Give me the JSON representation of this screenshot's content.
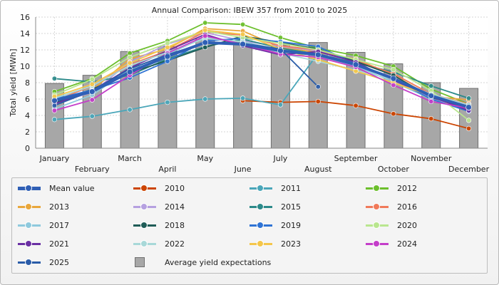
{
  "chart_data": {
    "type": "line",
    "title": "Annual Comparison: IBEW 357 from 2010 to 2025",
    "xlabel": "",
    "ylabel": "Total yield [MWh]",
    "ylim": [
      0,
      16
    ],
    "yticks": [
      0,
      2,
      4,
      6,
      8,
      10,
      12,
      14,
      16
    ],
    "grid": true,
    "legend_position": "bottom",
    "categories": [
      "January",
      "February",
      "March",
      "April",
      "May",
      "June",
      "July",
      "August",
      "September",
      "October",
      "November",
      "December"
    ],
    "bars": {
      "name": "Average yield expectations",
      "color": "#a7a7a7",
      "values": [
        7.9,
        8.9,
        11.8,
        12.4,
        13.3,
        13.1,
        12.6,
        12.9,
        11.7,
        10.3,
        8.0,
        7.3
      ]
    },
    "series": [
      {
        "name": "Mean value",
        "color": "#2f5fb5",
        "width": 4,
        "values": [
          5.8,
          6.9,
          9.3,
          11.2,
          12.9,
          12.7,
          11.9,
          11.4,
          10.2,
          8.5,
          6.4,
          5.0
        ]
      },
      {
        "name": "2010",
        "color": "#cc4400",
        "values": [
          null,
          null,
          null,
          null,
          null,
          5.8,
          5.6,
          5.7,
          5.2,
          4.2,
          3.6,
          2.4
        ]
      },
      {
        "name": "2011",
        "color": "#4aa6b9",
        "values": [
          3.5,
          3.9,
          4.7,
          5.6,
          6.0,
          6.1,
          5.3,
          11.6,
          null,
          null,
          null,
          null
        ]
      },
      {
        "name": "2012",
        "color": "#6cbf2c",
        "values": [
          6.9,
          8.5,
          11.6,
          13.1,
          15.3,
          15.1,
          13.5,
          12.2,
          11.3,
          10.0,
          7.2,
          5.4
        ]
      },
      {
        "name": "2013",
        "color": "#e9a73c",
        "values": [
          5.8,
          7.1,
          10.9,
          12.1,
          14.6,
          14.3,
          12.3,
          11.7,
          10.9,
          8.9,
          6.3,
          5.9
        ]
      },
      {
        "name": "2014",
        "color": "#b5a0e0",
        "values": [
          5.5,
          6.8,
          10.5,
          12.7,
          14.1,
          13.1,
          12.4,
          11.9,
          10.1,
          8.7,
          6.1,
          4.9
        ]
      },
      {
        "name": "2015",
        "color": "#2c8a8a",
        "values": [
          8.5,
          8.1,
          8.9,
          10.9,
          12.4,
          13.3,
          12.2,
          11.5,
          10.4,
          9.3,
          7.6,
          6.1
        ]
      },
      {
        "name": "2016",
        "color": "#f07a5a",
        "values": [
          5.8,
          7.6,
          10.2,
          11.9,
          14.2,
          13.8,
          12.5,
          12.0,
          10.7,
          9.1,
          6.6,
          5.4
        ]
      },
      {
        "name": "2017",
        "color": "#8ec9dd",
        "values": [
          4.8,
          6.5,
          9.6,
          11.5,
          13.5,
          13.0,
          12.0,
          11.3,
          10.0,
          8.1,
          6.0,
          4.6
        ]
      },
      {
        "name": "2018",
        "color": "#1f5c57",
        "values": [
          5.5,
          7.2,
          9.2,
          10.7,
          12.3,
          13.7,
          12.9,
          12.1,
          10.6,
          8.9,
          6.2,
          4.9
        ]
      },
      {
        "name": "2019",
        "color": "#2f73d4",
        "values": [
          6.0,
          7.1,
          8.6,
          10.6,
          13.1,
          13.4,
          13.0,
          12.4,
          10.3,
          8.4,
          6.0,
          4.5
        ]
      },
      {
        "name": "2020",
        "color": "#b9e68f",
        "values": [
          6.5,
          8.4,
          11.1,
          12.8,
          14.3,
          13.5,
          12.8,
          12.0,
          10.8,
          9.6,
          7.0,
          3.4
        ]
      },
      {
        "name": "2021",
        "color": "#6a2fa3",
        "values": [
          5.4,
          7.0,
          9.8,
          11.9,
          13.9,
          12.5,
          11.4,
          11.8,
          10.5,
          8.3,
          6.3,
          4.6
        ]
      },
      {
        "name": "2022",
        "color": "#a8d8d8",
        "values": [
          6.1,
          7.6,
          10.1,
          11.7,
          13.4,
          13.0,
          11.6,
          10.6,
          9.5,
          8.4,
          6.6,
          5.3
        ]
      },
      {
        "name": "2023",
        "color": "#f4c64b",
        "values": [
          6.3,
          7.8,
          10.4,
          12.3,
          14.4,
          13.9,
          12.1,
          10.8,
          9.4,
          8.0,
          6.4,
          5.0
        ]
      },
      {
        "name": "2024",
        "color": "#c43ec9",
        "values": [
          4.6,
          5.9,
          8.9,
          11.6,
          13.7,
          12.7,
          11.5,
          11.1,
          9.9,
          7.7,
          5.7,
          4.9
        ]
      },
      {
        "name": "2025",
        "color": "#2a5ca8",
        "values": [
          5.2,
          7.0,
          9.7,
          11.4,
          12.9,
          12.8,
          12.1,
          7.5,
          null,
          null,
          null,
          null
        ]
      }
    ]
  }
}
